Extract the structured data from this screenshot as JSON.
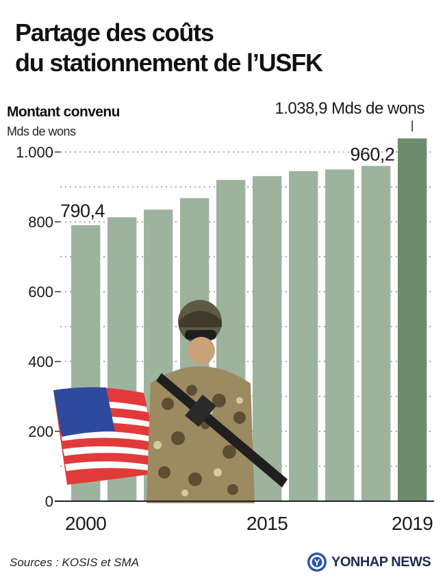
{
  "title_lines": [
    "Partage des coûts",
    "du stationnement de l’USFK"
  ],
  "chart_data": {
    "type": "bar",
    "title": "Partage des coûts du stationnement de l’USFK",
    "ylabel": "Montant convenu",
    "yunit": "Mds de wons",
    "ylim": [
      0,
      1000
    ],
    "yticks": [
      0,
      200,
      400,
      600,
      800,
      1000
    ],
    "ytick_labels": [
      "0",
      "200",
      "400",
      "600",
      "800",
      "1.000"
    ],
    "categories": [
      "2000",
      "",
      "",
      "",
      "",
      "2015",
      "",
      "",
      "",
      "2019"
    ],
    "values": [
      790.4,
      813,
      835,
      868,
      920,
      931,
      945,
      950,
      960.2,
      1038.9
    ],
    "highlight_index": 9,
    "annotations": [
      {
        "index": 0,
        "text": "790,4"
      },
      {
        "index": 8,
        "text": "960,2"
      },
      {
        "index": 9,
        "text": "1.038,9 Mds de wons"
      }
    ],
    "colors": {
      "bar": "#9eb39e",
      "highlight": "#6f8b6d",
      "grid": "#555555"
    }
  },
  "sources": "Sources : KOSIS et SMA",
  "logo_text": "YONHAP NEWS",
  "logo_mark": "Y"
}
